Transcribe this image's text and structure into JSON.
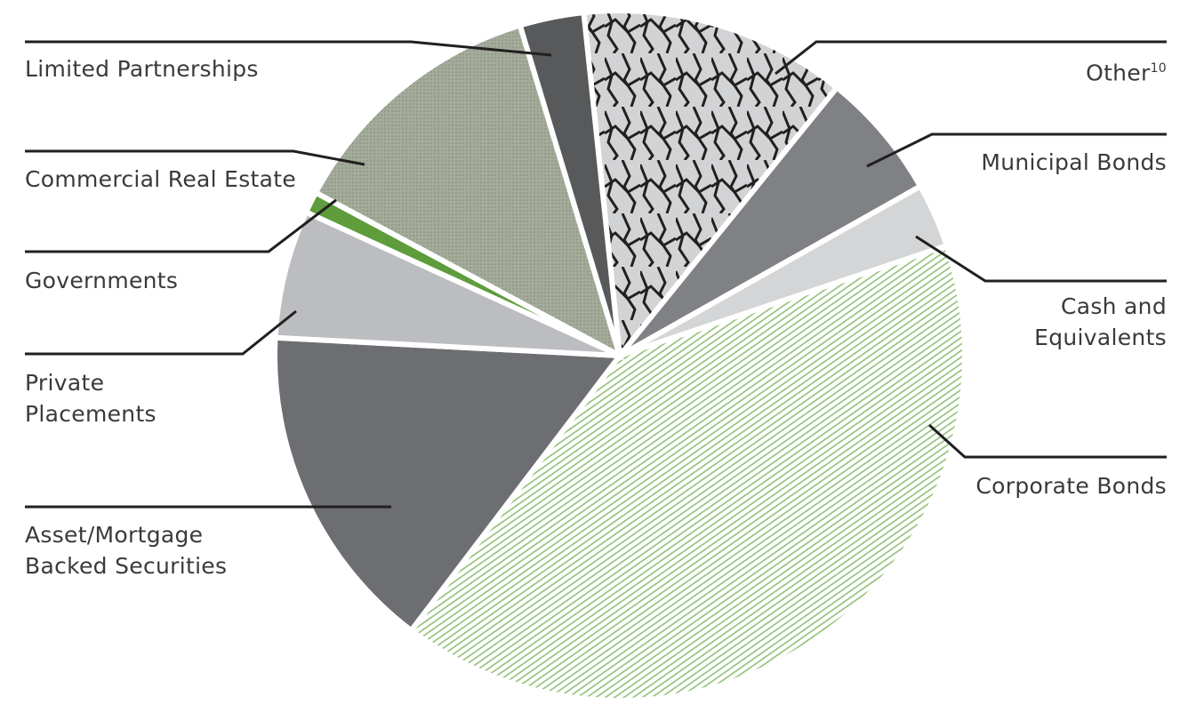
{
  "chart_data": {
    "type": "pie",
    "categories": [
      "Other",
      "Municipal Bonds",
      "Cash and Equivalents",
      "Corporate Bonds",
      "Asset/Mortgage Backed Securities",
      "Private Placements",
      "Governments",
      "Commercial Real Estate",
      "Limited Partnerships"
    ],
    "other_footnote": "10",
    "values": [
      12.5,
      6,
      3,
      40.5,
      15.5,
      6,
      1,
      12.5,
      3
    ],
    "colors": [
      "#d2d3d5",
      "#808184",
      "#d4d5d7",
      "#ffffff",
      "#6d6e72",
      "#bcbdc0",
      "#5e9c3c",
      "#a4ab9b",
      "#58595b"
    ]
  }
}
